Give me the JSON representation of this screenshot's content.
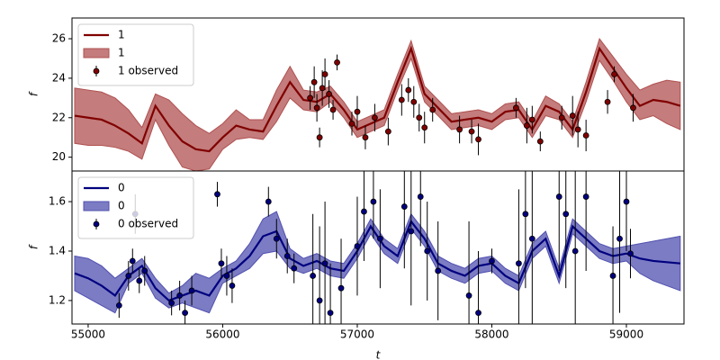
{
  "chart_data": [
    {
      "type": "line",
      "ylabel": "f",
      "xlim": [
        54880,
        59428
      ],
      "ylim": [
        19.3,
        27.05
      ],
      "yticks": [
        20,
        22,
        24,
        26
      ],
      "legend": "upper left",
      "x": [
        54900,
        55000,
        55100,
        55200,
        55300,
        55400,
        55500,
        55600,
        55700,
        55800,
        55900,
        56000,
        56100,
        56200,
        56300,
        56400,
        56500,
        56600,
        56700,
        56800,
        56900,
        57000,
        57100,
        57200,
        57300,
        57400,
        57500,
        57600,
        57700,
        57800,
        57900,
        58000,
        58100,
        58200,
        58300,
        58400,
        58500,
        58600,
        58700,
        58800,
        58900,
        59000,
        59100,
        59200,
        59300,
        59400
      ],
      "series": [
        {
          "name": "1",
          "color": "#800000",
          "values": [
            22.1,
            22.0,
            21.9,
            21.6,
            21.2,
            20.7,
            22.6,
            21.6,
            20.8,
            20.4,
            20.3,
            21.0,
            21.6,
            21.4,
            21.3,
            22.6,
            23.8,
            22.9,
            22.8,
            23.2,
            22.4,
            21.4,
            21.7,
            22.0,
            23.8,
            25.5,
            23.2,
            22.5,
            21.8,
            21.9,
            22.0,
            21.8,
            22.3,
            22.4,
            21.4,
            22.6,
            22.3,
            21.4,
            23.3,
            25.5,
            24.5,
            23.5,
            22.6,
            22.9,
            22.8,
            22.6
          ]
        }
      ],
      "band": {
        "name": "1",
        "color": "#b05050",
        "lower": [
          20.7,
          20.6,
          20.6,
          20.5,
          20.3,
          19.9,
          21.9,
          20.6,
          19.5,
          19.3,
          19.4,
          20.4,
          20.9,
          21.0,
          20.9,
          21.8,
          23.0,
          22.4,
          22.3,
          22.8,
          22.0,
          21.0,
          21.3,
          21.6,
          23.4,
          25.0,
          22.8,
          22.1,
          21.4,
          21.5,
          21.6,
          21.4,
          21.9,
          22.0,
          21.0,
          22.1,
          21.9,
          21.0,
          22.8,
          24.9,
          23.9,
          22.8,
          21.9,
          22.1,
          21.7,
          21.4
        ],
        "upper": [
          23.5,
          23.4,
          23.3,
          23.0,
          22.4,
          21.5,
          23.2,
          22.9,
          22.2,
          21.6,
          21.2,
          21.7,
          22.4,
          21.9,
          21.9,
          23.4,
          24.6,
          23.4,
          23.3,
          23.6,
          22.8,
          21.8,
          22.1,
          22.4,
          24.2,
          25.9,
          23.6,
          22.9,
          22.2,
          22.3,
          22.4,
          22.2,
          22.7,
          22.8,
          21.8,
          23.1,
          22.7,
          21.8,
          23.8,
          26.0,
          25.1,
          24.2,
          23.4,
          23.7,
          23.9,
          23.8
        ]
      },
      "observed": {
        "name": "1 observed",
        "color": "#800000",
        "x": [
          56650,
          56680,
          56700,
          56720,
          56740,
          56760,
          56790,
          56820,
          56850,
          56960,
          57000,
          57060,
          57130,
          57230,
          57330,
          57380,
          57420,
          57460,
          57500,
          57560,
          57760,
          57850,
          57900,
          58180,
          58260,
          58300,
          58360,
          58520,
          58600,
          58640,
          58700,
          58860,
          58910,
          59050
        ],
        "values": [
          23.0,
          23.8,
          22.5,
          21.0,
          23.5,
          24.2,
          23.2,
          22.4,
          24.8,
          21.7,
          22.3,
          21.0,
          22.0,
          21.3,
          22.9,
          23.4,
          22.8,
          22.0,
          21.5,
          22.4,
          21.4,
          21.3,
          20.9,
          22.5,
          21.6,
          21.9,
          20.8,
          22.0,
          22.1,
          21.4,
          21.1,
          22.8,
          24.2,
          22.5
        ],
        "errors": [
          0.6,
          0.8,
          0.7,
          0.5,
          0.9,
          0.8,
          0.7,
          0.5,
          0.4,
          0.6,
          0.8,
          0.6,
          0.7,
          0.7,
          0.8,
          0.6,
          0.8,
          0.7,
          0.8,
          0.6,
          0.7,
          0.6,
          0.8,
          0.5,
          0.9,
          0.7,
          0.5,
          0.6,
          1.0,
          0.9,
          0.8,
          0.6,
          0.4,
          0.7
        ]
      }
    },
    {
      "type": "line",
      "ylabel": "f",
      "xlabel": "t",
      "xlim": [
        54880,
        59428
      ],
      "xticks": [
        55000,
        56000,
        57000,
        58000,
        59000
      ],
      "ylim": [
        1.105,
        1.724
      ],
      "yticks": [
        1.2,
        1.4,
        1.6
      ],
      "legend": "upper left",
      "x": [
        54900,
        55000,
        55100,
        55200,
        55300,
        55400,
        55500,
        55600,
        55700,
        55800,
        55900,
        56000,
        56100,
        56200,
        56300,
        56400,
        56500,
        56600,
        56700,
        56800,
        56900,
        57000,
        57100,
        57200,
        57300,
        57400,
        57500,
        57600,
        57700,
        57800,
        57900,
        58000,
        58100,
        58200,
        58300,
        58400,
        58500,
        58600,
        58700,
        58800,
        58900,
        59000,
        59100,
        59200,
        59300,
        59400
      ],
      "series": [
        {
          "name": "0",
          "color": "#00007f",
          "values": [
            1.31,
            1.29,
            1.26,
            1.22,
            1.3,
            1.34,
            1.25,
            1.2,
            1.22,
            1.24,
            1.22,
            1.3,
            1.33,
            1.38,
            1.46,
            1.48,
            1.37,
            1.34,
            1.36,
            1.33,
            1.32,
            1.4,
            1.5,
            1.42,
            1.38,
            1.52,
            1.45,
            1.35,
            1.32,
            1.3,
            1.34,
            1.35,
            1.3,
            1.27,
            1.4,
            1.45,
            1.3,
            1.5,
            1.45,
            1.4,
            1.38,
            1.39,
            1.37,
            1.36,
            1.355,
            1.35
          ]
        }
      ],
      "band": {
        "name": "0",
        "color": "#5050b0",
        "lower": [
          1.24,
          1.21,
          1.18,
          1.15,
          1.27,
          1.31,
          1.21,
          1.17,
          1.19,
          1.17,
          1.15,
          1.27,
          1.3,
          1.33,
          1.39,
          1.4,
          1.33,
          1.31,
          1.33,
          1.3,
          1.29,
          1.37,
          1.47,
          1.39,
          1.35,
          1.49,
          1.42,
          1.32,
          1.29,
          1.27,
          1.31,
          1.32,
          1.27,
          1.24,
          1.37,
          1.42,
          1.27,
          1.47,
          1.42,
          1.37,
          1.35,
          1.36,
          1.31,
          1.28,
          1.26,
          1.24
        ],
        "upper": [
          1.38,
          1.37,
          1.34,
          1.29,
          1.33,
          1.37,
          1.29,
          1.23,
          1.26,
          1.31,
          1.29,
          1.33,
          1.36,
          1.43,
          1.53,
          1.56,
          1.41,
          1.37,
          1.39,
          1.36,
          1.35,
          1.43,
          1.53,
          1.45,
          1.41,
          1.55,
          1.48,
          1.38,
          1.35,
          1.33,
          1.37,
          1.38,
          1.33,
          1.3,
          1.43,
          1.48,
          1.33,
          1.53,
          1.48,
          1.43,
          1.41,
          1.42,
          1.43,
          1.44,
          1.45,
          1.46
        ]
      },
      "observed": {
        "name": "0 observed",
        "color": "#00007f",
        "x": [
          55230,
          55300,
          55330,
          55350,
          55380,
          55420,
          55620,
          55680,
          55720,
          55770,
          55960,
          55990,
          56030,
          56070,
          56340,
          56400,
          56480,
          56530,
          56670,
          56720,
          56760,
          56800,
          56880,
          57000,
          57050,
          57120,
          57170,
          57350,
          57400,
          57470,
          57520,
          57600,
          57830,
          57900,
          58000,
          58200,
          58250,
          58300,
          58500,
          58550,
          58620,
          58700,
          58900,
          58950,
          59000,
          59030
        ],
        "values": [
          1.18,
          1.3,
          1.36,
          1.55,
          1.28,
          1.32,
          1.19,
          1.22,
          1.15,
          1.24,
          1.63,
          1.35,
          1.3,
          1.26,
          1.6,
          1.45,
          1.38,
          1.33,
          1.3,
          1.2,
          1.35,
          1.15,
          1.25,
          1.42,
          1.56,
          1.6,
          1.45,
          1.58,
          1.48,
          1.62,
          1.4,
          1.32,
          1.22,
          1.15,
          1.36,
          1.35,
          1.55,
          1.45,
          1.62,
          1.55,
          1.4,
          1.62,
          1.3,
          1.45,
          1.6,
          1.39
        ],
        "errors": [
          0.05,
          0.06,
          0.05,
          0.08,
          0.05,
          0.06,
          0.05,
          0.06,
          0.05,
          0.06,
          0.05,
          0.06,
          0.08,
          0.07,
          0.06,
          0.08,
          0.07,
          0.06,
          0.25,
          0.3,
          0.25,
          0.2,
          0.2,
          0.2,
          0.2,
          0.15,
          0.2,
          0.25,
          0.3,
          0.2,
          0.2,
          0.2,
          0.3,
          0.25,
          0.05,
          0.3,
          0.3,
          0.35,
          0.3,
          0.3,
          0.35,
          0.3,
          0.2,
          0.3,
          0.2,
          0.1
        ]
      }
    }
  ]
}
